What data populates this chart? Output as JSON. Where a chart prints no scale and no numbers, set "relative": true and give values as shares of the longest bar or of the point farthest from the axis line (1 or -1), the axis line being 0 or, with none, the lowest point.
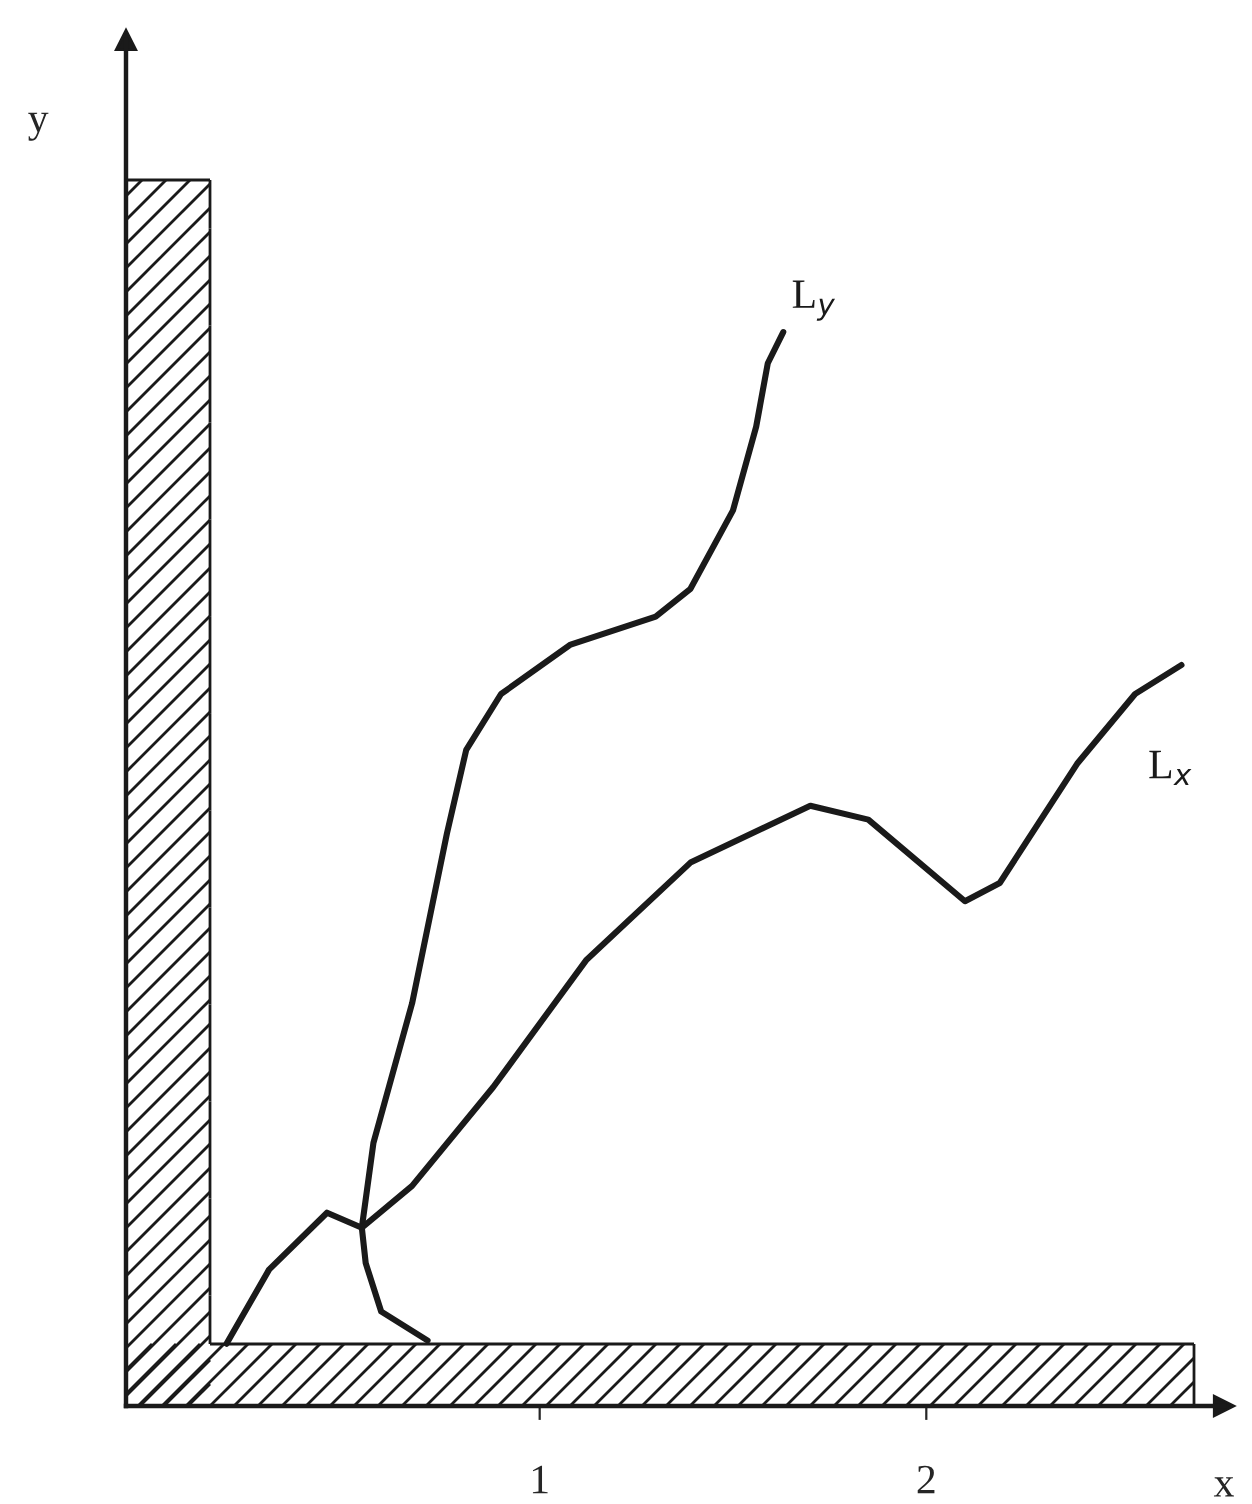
{
  "chart_data": {
    "type": "line",
    "relative": true,
    "xlabel": "x",
    "ylabel": "y",
    "xlim": [
      -0.07,
      2.77
    ],
    "xticks": [
      1,
      2
    ],
    "tick_labels": "x",
    "grid": false,
    "legend": false,
    "marker": "none",
    "line_style": "solid",
    "series": [
      {
        "name": "L$_{y}$",
        "color": "#1a1a1a",
        "x": [
          0.71,
          0.59,
          0.55,
          0.54,
          0.57,
          0.67,
          0.76,
          0.81,
          0.9,
          1.08,
          1.3,
          1.39,
          1.5,
          1.56,
          1.59,
          1.63
        ],
        "values": [
          0.061,
          0.088,
          0.133,
          0.166,
          0.245,
          0.375,
          0.533,
          0.611,
          0.663,
          0.709,
          0.735,
          0.761,
          0.834,
          0.912,
          0.971,
          1.0
        ]
      },
      {
        "name": "L$_{x}$",
        "color": "#1a1a1a",
        "x": [
          0.19,
          0.3,
          0.45,
          0.54,
          0.67,
          0.88,
          1.12,
          1.39,
          1.7,
          1.85,
          2.1,
          2.19,
          2.39,
          2.54,
          2.66
        ],
        "values": [
          0.058,
          0.127,
          0.18,
          0.166,
          0.205,
          0.297,
          0.415,
          0.506,
          0.559,
          0.546,
          0.47,
          0.487,
          0.598,
          0.663,
          0.69
        ]
      }
    ]
  }
}
